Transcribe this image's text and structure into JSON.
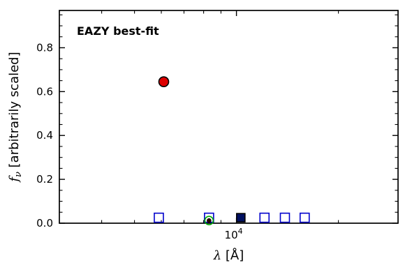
{
  "figure": {
    "background": "#ffffff",
    "annotation": {
      "text": "EAZY best-fit",
      "color": "#ff0000"
    }
  },
  "chart_data": {
    "type": "scatter",
    "title": "EAZY best-fit",
    "xlabel_lambda": "λ",
    "xlabel_rest": " [Å]",
    "ylabel_f": "f",
    "ylabel_sub": "ν",
    "ylabel_rest": " [arbitrarily scaled]",
    "xscale": "log",
    "xlim": [
      3000,
      30000
    ],
    "ylim": [
      0,
      0.97
    ],
    "grid": false,
    "legend": "none",
    "y_major_ticks": [
      0.0,
      0.2,
      0.4,
      0.6,
      0.8
    ],
    "y_tick_labels": [
      "0.0",
      "0.2",
      "0.4",
      "0.6",
      "0.8"
    ],
    "y_minor_step": 0.05,
    "x_major_ticks": [
      10000
    ],
    "x_major_tick_label": {
      "base": "10",
      "exp": "4"
    },
    "x_minor_ticks": [
      3000,
      4000,
      5000,
      6000,
      7000,
      8000,
      9000,
      20000,
      30000
    ],
    "series": [
      {
        "name": "best-fit-model-point",
        "marker": "circle",
        "fill": "#dd0000",
        "edge": "#000000",
        "size": 7,
        "points": [
          {
            "x": 6100,
            "y": 0.645
          }
        ]
      },
      {
        "name": "observed-photometry-squares",
        "marker": "square-open",
        "fill": "none",
        "edge": "#0000cc",
        "size": 6.5,
        "points": [
          {
            "x": 5900,
            "y": 0.025
          },
          {
            "x": 8300,
            "y": 0.025
          },
          {
            "x": 12100,
            "y": 0.025
          },
          {
            "x": 13900,
            "y": 0.025
          },
          {
            "x": 15900,
            "y": 0.025
          }
        ]
      },
      {
        "name": "dark-photometry-square",
        "marker": "square",
        "fill": "#001060",
        "edge": "#000000",
        "size": 6,
        "points": [
          {
            "x": 10300,
            "y": 0.025
          }
        ]
      },
      {
        "name": "green-open-circle-point",
        "marker": "circle-open",
        "fill": "none",
        "edge": "#00aa00",
        "size": 6,
        "points": [
          {
            "x": 8300,
            "y": 0.012
          }
        ]
      },
      {
        "name": "green-circle-center-dot",
        "marker": "circle",
        "fill": "#220000",
        "edge": "#220000",
        "size": 2.5,
        "points": [
          {
            "x": 8300,
            "y": 0.012
          }
        ]
      }
    ]
  }
}
